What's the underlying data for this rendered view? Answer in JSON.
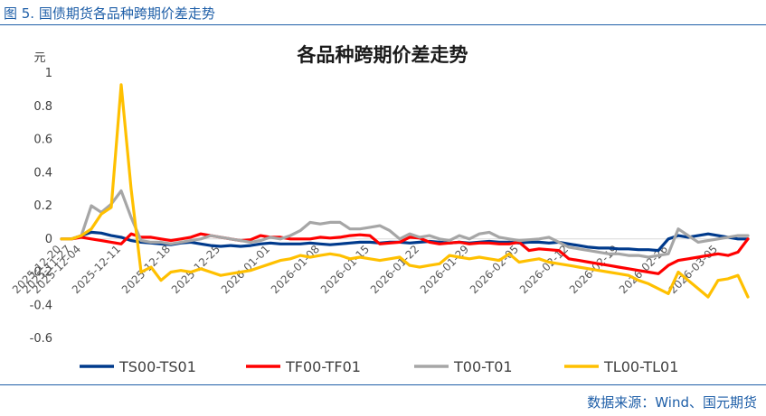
{
  "figure": {
    "label": "图 5.  国债期货各品种跨期价差走势",
    "source": "数据来源：Wind、国元期货"
  },
  "chart_data": {
    "type": "line",
    "title": "各品种跨期价差走势",
    "ylabel": "元",
    "xlabel": "",
    "ylim": [
      -0.6,
      1
    ],
    "yticks": [
      1,
      0.8,
      0.6,
      0.4,
      0.2,
      0,
      -0.2,
      -0.4,
      -0.6
    ],
    "yticklabels": [
      "1",
      "0.8",
      "0.6",
      "0.4",
      "0.2",
      "0",
      "-0.2",
      "-0.4",
      "-0.6"
    ],
    "x": [
      "2025-12-20",
      "2025-11-27",
      "2025-12-04",
      "2025-12-08",
      "2025-12-09",
      "2025-12-10",
      "2025-12-11",
      "2025-12-12",
      "2025-12-15",
      "2025-12-16",
      "2025-12-17",
      "2025-12-18",
      "2025-12-19",
      "2025-12-22",
      "2025-12-23",
      "2025-12-24",
      "2025-12-25",
      "2025-12-26",
      "2025-12-29",
      "2025-12-30",
      "2025-12-31",
      "2026-01-01",
      "2026-01-02",
      "2026-01-05",
      "2026-01-06",
      "2026-01-07",
      "2026-01-08",
      "2026-01-09",
      "2026-01-12",
      "2026-01-13",
      "2026-01-14",
      "2026-01-15",
      "2026-01-16",
      "2026-01-19",
      "2026-01-20",
      "2026-01-21",
      "2026-01-22",
      "2026-01-23",
      "2026-01-26",
      "2026-01-27",
      "2026-01-28",
      "2026-01-29",
      "2026-01-30",
      "2026-02-02",
      "2026-02-03",
      "2026-02-04",
      "2026-02-05",
      "2026-02-06",
      "2026-02-09",
      "2026-02-10",
      "2026-02-11",
      "2026-02-12",
      "2026-02-13",
      "2026-02-16",
      "2026-02-17",
      "2026-02-18",
      "2026-02-19",
      "2026-02-20",
      "2026-02-23",
      "2026-02-24",
      "2026-02-25",
      "2026-02-26",
      "2026-02-27",
      "2026-03-02",
      "2026-03-03",
      "2026-03-04",
      "2026-03-05",
      "2026-03-06",
      "2026-03-09",
      "2026-03-10"
    ],
    "xticklabels": [
      "2025-12-20",
      "2025-11-27",
      "2025-12-04",
      "2025-12-11",
      "2025-12-18",
      "2025-12-25",
      "2026-01-01",
      "2026-01-08",
      "2026-01-15",
      "2026-01-22",
      "2026-01-29",
      "2026-02-05",
      "2026-02-12",
      "2026-02-19",
      "2026-02-26",
      "2026-03-05"
    ],
    "xtick_index": [
      0,
      1,
      2,
      6,
      11,
      16,
      21,
      26,
      31,
      36,
      41,
      46,
      51,
      56,
      61,
      66
    ],
    "series": [
      {
        "name": "TS00-TS01",
        "color": "#003a8c",
        "values": [
          0,
          0,
          0.02,
          0.04,
          0.035,
          0.02,
          0.01,
          -0.01,
          -0.02,
          -0.025,
          -0.03,
          -0.035,
          -0.025,
          -0.02,
          -0.03,
          -0.04,
          -0.045,
          -0.04,
          -0.045,
          -0.04,
          -0.03,
          -0.025,
          -0.03,
          -0.03,
          -0.03,
          -0.025,
          -0.03,
          -0.035,
          -0.03,
          -0.025,
          -0.02,
          -0.02,
          -0.025,
          -0.02,
          -0.02,
          -0.025,
          -0.02,
          -0.015,
          -0.02,
          -0.025,
          -0.02,
          -0.025,
          -0.02,
          -0.015,
          -0.02,
          -0.02,
          -0.025,
          -0.02,
          -0.02,
          -0.025,
          -0.02,
          -0.03,
          -0.04,
          -0.05,
          -0.055,
          -0.055,
          -0.06,
          -0.06,
          -0.065,
          -0.065,
          -0.07,
          0.0,
          0.02,
          0.01,
          0.02,
          0.03,
          0.02,
          0.01,
          0.0,
          0.0
        ]
      },
      {
        "name": "TF00-TF01",
        "color": "#ff0000",
        "values": [
          0,
          0,
          0.01,
          0.0,
          -0.01,
          -0.02,
          -0.03,
          0.03,
          0.01,
          0.01,
          0.0,
          -0.01,
          0.0,
          0.01,
          0.03,
          0.02,
          0.01,
          0.0,
          -0.01,
          -0.005,
          0.02,
          0.01,
          0.01,
          0.0,
          0.0,
          0.0,
          0.01,
          0.005,
          0.01,
          0.02,
          0.025,
          0.02,
          -0.03,
          -0.025,
          -0.02,
          0.01,
          0.005,
          -0.02,
          -0.03,
          -0.025,
          -0.02,
          -0.03,
          -0.025,
          -0.025,
          -0.03,
          -0.03,
          -0.02,
          -0.07,
          -0.06,
          -0.065,
          -0.07,
          -0.12,
          -0.13,
          -0.14,
          -0.15,
          -0.16,
          -0.17,
          -0.18,
          -0.19,
          -0.2,
          -0.21,
          -0.16,
          -0.13,
          -0.12,
          -0.11,
          -0.1,
          -0.09,
          -0.1,
          -0.08,
          0.0
        ]
      },
      {
        "name": "T00-T01",
        "color": "#a6a6a6",
        "values": [
          0,
          0,
          0.02,
          0.2,
          0.16,
          0.21,
          0.29,
          0.13,
          -0.01,
          -0.02,
          -0.02,
          -0.03,
          -0.02,
          -0.01,
          0.0,
          0.02,
          0.01,
          0.0,
          -0.01,
          -0.02,
          -0.01,
          0.01,
          0.0,
          0.02,
          0.05,
          0.1,
          0.09,
          0.1,
          0.1,
          0.06,
          0.06,
          0.07,
          0.08,
          0.05,
          0.0,
          0.03,
          0.01,
          0.02,
          0.0,
          -0.01,
          0.02,
          0.0,
          0.03,
          0.04,
          0.01,
          0.0,
          -0.01,
          -0.005,
          0.0,
          0.01,
          -0.02,
          -0.05,
          -0.06,
          -0.07,
          -0.08,
          -0.09,
          -0.09,
          -0.1,
          -0.1,
          -0.11,
          -0.1,
          -0.09,
          0.06,
          0.02,
          -0.02,
          -0.01,
          0.0,
          0.01,
          0.02,
          0.02
        ]
      },
      {
        "name": "TL00-TL01",
        "color": "#ffc000",
        "values": [
          0,
          0,
          0.02,
          0.06,
          0.15,
          0.19,
          0.93,
          0.3,
          -0.2,
          -0.17,
          -0.25,
          -0.2,
          -0.19,
          -0.2,
          -0.18,
          -0.2,
          -0.22,
          -0.21,
          -0.2,
          -0.19,
          -0.17,
          -0.15,
          -0.13,
          -0.12,
          -0.1,
          -0.11,
          -0.1,
          -0.09,
          -0.1,
          -0.12,
          -0.11,
          -0.12,
          -0.13,
          -0.12,
          -0.11,
          -0.16,
          -0.17,
          -0.16,
          -0.15,
          -0.1,
          -0.11,
          -0.12,
          -0.11,
          -0.12,
          -0.13,
          -0.09,
          -0.14,
          -0.13,
          -0.12,
          -0.14,
          -0.15,
          -0.16,
          -0.17,
          -0.18,
          -0.19,
          -0.2,
          -0.21,
          -0.22,
          -0.25,
          -0.27,
          -0.3,
          -0.33,
          -0.2,
          -0.25,
          -0.3,
          -0.35,
          -0.25,
          -0.24,
          -0.22,
          -0.35
        ]
      }
    ],
    "legend": "bottom",
    "grid": false
  }
}
